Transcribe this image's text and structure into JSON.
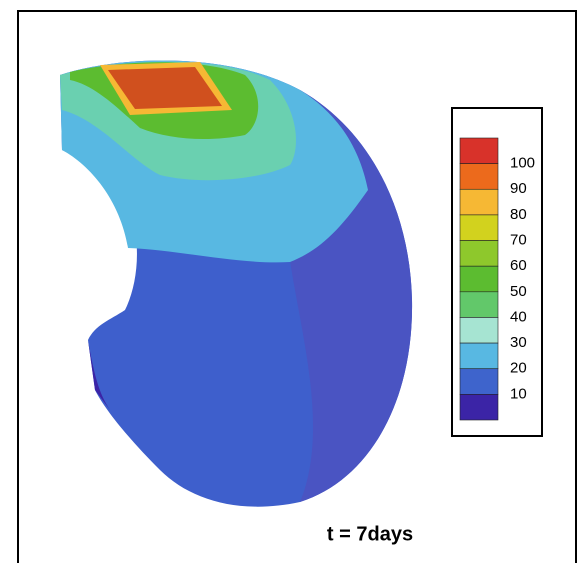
{
  "colorbar": {
    "labels": [
      "100",
      "90",
      "80",
      "70",
      "60",
      "50",
      "40",
      "30",
      "20",
      "10"
    ],
    "colors": [
      "#d8322a",
      "#ec6a1c",
      "#f6b834",
      "#d2d21e",
      "#8ec82c",
      "#5cbc30",
      "#62c86a",
      "#a6e4d2",
      "#58b8e2",
      "#3e64cc",
      "#3b24a6"
    ]
  },
  "caption": "t = 7days"
}
